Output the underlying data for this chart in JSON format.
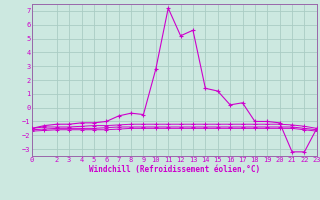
{
  "xlabel": "Windchill (Refroidissement éolien,°C)",
  "bg_color": "#cce8e0",
  "grid_color": "#aaccc4",
  "line_color": "#cc00cc",
  "spine_color": "#9966aa",
  "x_main": [
    0,
    1,
    2,
    3,
    4,
    5,
    6,
    7,
    8,
    9,
    10,
    11,
    12,
    13,
    14,
    15,
    16,
    17,
    18,
    19,
    20,
    21,
    22,
    23
  ],
  "y_main": [
    -1.5,
    -1.3,
    -1.2,
    -1.2,
    -1.1,
    -1.1,
    -1.0,
    -0.6,
    -0.4,
    -0.5,
    2.8,
    7.2,
    5.2,
    5.6,
    1.4,
    1.2,
    0.2,
    0.35,
    -1.0,
    -1.0,
    -1.1,
    -3.2,
    -3.2,
    -1.5
  ],
  "x_flat1": [
    0,
    1,
    2,
    3,
    4,
    5,
    6,
    7,
    8,
    9,
    10,
    11,
    12,
    13,
    14,
    15,
    16,
    17,
    18,
    19,
    20,
    21,
    22,
    23
  ],
  "y_flat1": [
    -1.5,
    -1.4,
    -1.4,
    -1.4,
    -1.35,
    -1.3,
    -1.3,
    -1.25,
    -1.2,
    -1.2,
    -1.2,
    -1.2,
    -1.2,
    -1.2,
    -1.2,
    -1.2,
    -1.2,
    -1.2,
    -1.2,
    -1.2,
    -1.2,
    -1.25,
    -1.35,
    -1.5
  ],
  "x_flat2": [
    0,
    1,
    2,
    3,
    4,
    5,
    6,
    7,
    8,
    9,
    10,
    11,
    12,
    13,
    14,
    15,
    16,
    17,
    18,
    19,
    20,
    21,
    22,
    23
  ],
  "y_flat2": [
    -1.6,
    -1.55,
    -1.5,
    -1.5,
    -1.5,
    -1.5,
    -1.45,
    -1.4,
    -1.4,
    -1.4,
    -1.4,
    -1.4,
    -1.4,
    -1.4,
    -1.4,
    -1.4,
    -1.4,
    -1.4,
    -1.4,
    -1.4,
    -1.4,
    -1.4,
    -1.5,
    -1.6
  ],
  "x_flat3": [
    0,
    1,
    2,
    3,
    4,
    5,
    6,
    7,
    8,
    9,
    10,
    11,
    12,
    13,
    14,
    15,
    16,
    17,
    18,
    19,
    20,
    21,
    22,
    23
  ],
  "y_flat3": [
    -1.7,
    -1.65,
    -1.6,
    -1.6,
    -1.6,
    -1.6,
    -1.6,
    -1.55,
    -1.5,
    -1.5,
    -1.5,
    -1.5,
    -1.5,
    -1.5,
    -1.5,
    -1.5,
    -1.5,
    -1.5,
    -1.5,
    -1.5,
    -1.5,
    -1.5,
    -1.6,
    -1.7
  ],
  "xlim": [
    0,
    23
  ],
  "ylim": [
    -3.5,
    7.5
  ],
  "xticks": [
    0,
    2,
    3,
    4,
    5,
    6,
    7,
    8,
    9,
    10,
    11,
    12,
    13,
    14,
    15,
    16,
    17,
    18,
    19,
    20,
    21,
    22,
    23
  ],
  "yticks": [
    -3,
    -2,
    -1,
    0,
    1,
    2,
    3,
    4,
    5,
    6,
    7
  ],
  "tick_fontsize": 5,
  "label_fontsize": 5.5
}
